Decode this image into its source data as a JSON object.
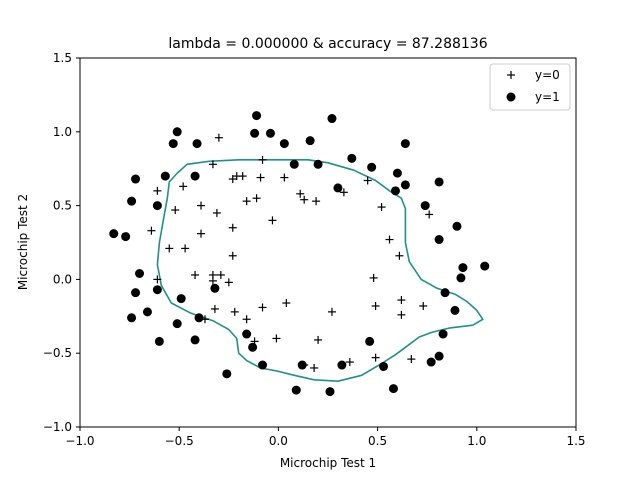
{
  "chart_data": {
    "type": "scatter",
    "title": "lambda = 0.000000 & accuracy = 87.288136",
    "xlabel": "Microchip Test 1",
    "ylabel": "Microchip Test 2",
    "xlim": [
      -1.0,
      1.5
    ],
    "ylim": [
      -1.0,
      1.5
    ],
    "xticks": [
      -1.0,
      -0.5,
      0.0,
      0.5,
      1.0,
      1.5
    ],
    "yticks": [
      -1.0,
      -0.5,
      0.0,
      0.5,
      1.0,
      1.5
    ],
    "xtick_labels": [
      "−1.0",
      "−0.5",
      "0.0",
      "0.5",
      "1.0",
      "1.5"
    ],
    "ytick_labels": [
      "−1.0",
      "−0.5",
      "0.0",
      "0.5",
      "1.0",
      "1.5"
    ],
    "grid": false,
    "legend_position": "top-right",
    "series": [
      {
        "name": "y=0",
        "marker": "plus",
        "color": "#000000",
        "points": [
          [
            -0.3,
            0.96
          ],
          [
            -0.33,
            0.78
          ],
          [
            -0.18,
            0.7
          ],
          [
            -0.21,
            0.7
          ],
          [
            -0.09,
            0.69
          ],
          [
            -0.08,
            0.81
          ],
          [
            0.03,
            0.69
          ],
          [
            -0.61,
            0.6
          ],
          [
            -0.52,
            0.47
          ],
          [
            -0.48,
            0.63
          ],
          [
            -0.39,
            0.5
          ],
          [
            -0.31,
            0.45
          ],
          [
            -0.23,
            0.68
          ],
          [
            -0.16,
            0.53
          ],
          [
            -0.11,
            0.55
          ],
          [
            -0.23,
            0.35
          ],
          [
            -0.64,
            0.33
          ],
          [
            -0.55,
            0.21
          ],
          [
            -0.47,
            0.21
          ],
          [
            -0.39,
            0.31
          ],
          [
            -0.23,
            0.16
          ],
          [
            0.11,
            0.58
          ],
          [
            0.13,
            0.54
          ],
          [
            0.19,
            0.53
          ],
          [
            0.33,
            0.59
          ],
          [
            0.45,
            0.67
          ],
          [
            0.52,
            0.49
          ],
          [
            0.56,
            0.27
          ],
          [
            0.61,
            0.16
          ],
          [
            0.48,
            0.01
          ],
          [
            0.62,
            -0.14
          ],
          [
            0.62,
            -0.24
          ],
          [
            0.73,
            -0.18
          ],
          [
            0.67,
            -0.54
          ],
          [
            0.49,
            -0.53
          ],
          [
            0.49,
            -0.18
          ],
          [
            0.36,
            -0.56
          ],
          [
            0.27,
            -0.22
          ],
          [
            0.2,
            -0.41
          ],
          [
            0.13,
            -0.58
          ],
          [
            0.18,
            -0.6
          ],
          [
            0.04,
            -0.16
          ],
          [
            -0.01,
            -0.4
          ],
          [
            -0.08,
            -0.19
          ],
          [
            -0.12,
            -0.42
          ],
          [
            -0.16,
            -0.27
          ],
          [
            -0.22,
            -0.22
          ],
          [
            -0.25,
            -0.02
          ],
          [
            -0.33,
            -0.01
          ],
          [
            -0.37,
            -0.27
          ],
          [
            -0.32,
            -0.2
          ],
          [
            -0.42,
            0.03
          ],
          [
            -0.61,
            0.0
          ],
          [
            -0.29,
            0.03
          ],
          [
            -0.03,
            0.4
          ],
          [
            -0.33,
            0.03
          ],
          [
            0.76,
            0.44
          ]
        ]
      },
      {
        "name": "y=1",
        "marker": "circle",
        "color": "#000000",
        "points": [
          [
            -0.83,
            0.31
          ],
          [
            -0.77,
            0.29
          ],
          [
            -0.72,
            0.68
          ],
          [
            -0.74,
            0.53
          ],
          [
            -0.61,
            0.5
          ],
          [
            -0.57,
            0.7
          ],
          [
            -0.53,
            0.92
          ],
          [
            -0.51,
            1.0
          ],
          [
            -0.41,
            0.92
          ],
          [
            -0.42,
            0.7
          ],
          [
            -0.12,
            0.99
          ],
          [
            -0.11,
            1.11
          ],
          [
            -0.04,
            0.99
          ],
          [
            0.03,
            0.92
          ],
          [
            0.08,
            0.78
          ],
          [
            0.16,
            0.94
          ],
          [
            0.2,
            0.78
          ],
          [
            0.27,
            1.09
          ],
          [
            0.37,
            0.82
          ],
          [
            0.47,
            0.76
          ],
          [
            0.59,
            0.6
          ],
          [
            0.6,
            0.72
          ],
          [
            0.64,
            0.64
          ],
          [
            0.64,
            0.92
          ],
          [
            0.74,
            0.5
          ],
          [
            0.81,
            0.66
          ],
          [
            0.81,
            0.27
          ],
          [
            0.9,
            0.36
          ],
          [
            0.93,
            0.08
          ],
          [
            1.04,
            0.09
          ],
          [
            0.92,
            0.01
          ],
          [
            0.84,
            -0.09
          ],
          [
            0.89,
            -0.21
          ],
          [
            0.83,
            -0.37
          ],
          [
            0.81,
            -0.52
          ],
          [
            0.77,
            -0.56
          ],
          [
            0.58,
            -0.74
          ],
          [
            0.53,
            -0.59
          ],
          [
            0.46,
            -0.42
          ],
          [
            0.32,
            -0.58
          ],
          [
            0.26,
            -0.76
          ],
          [
            0.09,
            -0.75
          ],
          [
            0.12,
            -0.58
          ],
          [
            -0.08,
            -0.58
          ],
          [
            -0.13,
            -0.46
          ],
          [
            -0.16,
            -0.37
          ],
          [
            -0.26,
            -0.64
          ],
          [
            -0.32,
            -0.06
          ],
          [
            -0.4,
            -0.26
          ],
          [
            -0.42,
            -0.41
          ],
          [
            -0.51,
            -0.3
          ],
          [
            -0.49,
            -0.13
          ],
          [
            -0.61,
            -0.07
          ],
          [
            -0.6,
            -0.42
          ],
          [
            -0.66,
            -0.22
          ],
          [
            -0.7,
            0.04
          ],
          [
            -0.72,
            -0.09
          ],
          [
            -0.74,
            -0.26
          ],
          [
            0.3,
            0.62
          ]
        ]
      }
    ],
    "decision_boundary": {
      "color": "#1f9090",
      "points": [
        [
          -0.51,
          0.72
        ],
        [
          -0.46,
          0.78
        ],
        [
          -0.35,
          0.8
        ],
        [
          -0.2,
          0.81
        ],
        [
          0.0,
          0.81
        ],
        [
          0.15,
          0.81
        ],
        [
          0.25,
          0.79
        ],
        [
          0.38,
          0.74
        ],
        [
          0.49,
          0.67
        ],
        [
          0.56,
          0.6
        ],
        [
          0.62,
          0.55
        ],
        [
          0.64,
          0.48
        ],
        [
          0.64,
          0.38
        ],
        [
          0.64,
          0.25
        ],
        [
          0.66,
          0.12
        ],
        [
          0.72,
          0.0
        ],
        [
          0.8,
          -0.06
        ],
        [
          0.89,
          -0.1
        ],
        [
          0.95,
          -0.15
        ],
        [
          1.0,
          -0.21
        ],
        [
          1.03,
          -0.27
        ],
        [
          0.98,
          -0.31
        ],
        [
          0.86,
          -0.33
        ],
        [
          0.77,
          -0.36
        ],
        [
          0.71,
          -0.39
        ],
        [
          0.64,
          -0.46
        ],
        [
          0.59,
          -0.51
        ],
        [
          0.52,
          -0.57
        ],
        [
          0.42,
          -0.65
        ],
        [
          0.3,
          -0.69
        ],
        [
          0.18,
          -0.68
        ],
        [
          0.08,
          -0.65
        ],
        [
          -0.01,
          -0.62
        ],
        [
          -0.09,
          -0.6
        ],
        [
          -0.16,
          -0.55
        ],
        [
          -0.2,
          -0.5
        ],
        [
          -0.21,
          -0.4
        ],
        [
          -0.25,
          -0.34
        ],
        [
          -0.33,
          -0.28
        ],
        [
          -0.44,
          -0.23
        ],
        [
          -0.54,
          -0.16
        ],
        [
          -0.59,
          -0.04
        ],
        [
          -0.61,
          0.1
        ],
        [
          -0.6,
          0.25
        ],
        [
          -0.58,
          0.4
        ],
        [
          -0.56,
          0.55
        ],
        [
          -0.55,
          0.66
        ],
        [
          -0.51,
          0.72
        ]
      ]
    }
  }
}
